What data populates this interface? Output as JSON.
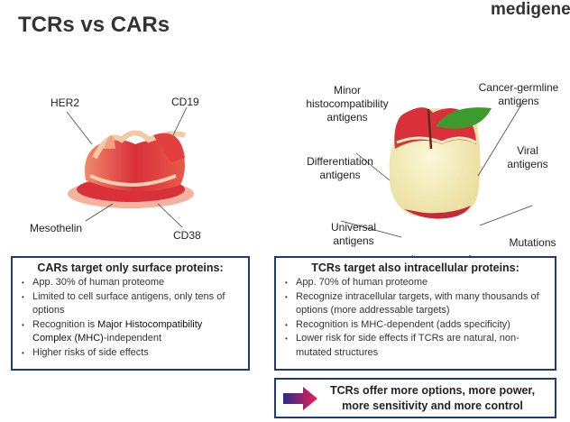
{
  "title": "TCRs vs CARs",
  "logo": "medigene",
  "cars": {
    "labels": {
      "her2": "HER2",
      "cd19": "CD19",
      "mesothelin": "Mesothelin",
      "cd38": "CD38"
    },
    "heading": "CARs target only surface proteins:",
    "bullets": [
      "App. 30% of human proteome",
      "Limited to cell surface antigens, only tens of options",
      "Recognition is ",
      "Higher risks of side effects"
    ],
    "mhc_bold": "Major Histocompatibility Complex (MHC)",
    "mhc_rest": "-independent"
  },
  "tcrs": {
    "labels": {
      "minor": "Minor histocompatibility antigens",
      "cancer": "Cancer-germline antigens",
      "diff": "Differentiation antigens",
      "viral": "Viral antigens",
      "universal": "Universal antigens",
      "mutations": "Mutations"
    },
    "heading": "TCRs target also intracellular proteins:",
    "bullets": [
      "App. 70% of human proteome",
      "Recognize intracellular targets, with many thousands of options (more addressable targets)",
      "Recognition is MHC-dependent (adds specificity)",
      "Lower risk for side effects if TCRs are natural, non-mutated structures"
    ]
  },
  "conclusion": "TCRs offer more options, more power, more sensitivity and more control",
  "colors": {
    "border": "#1f3a78",
    "apple_red": "#d9303a",
    "apple_flesh": "#f7f0c4",
    "leaf": "#3d9a2c"
  }
}
